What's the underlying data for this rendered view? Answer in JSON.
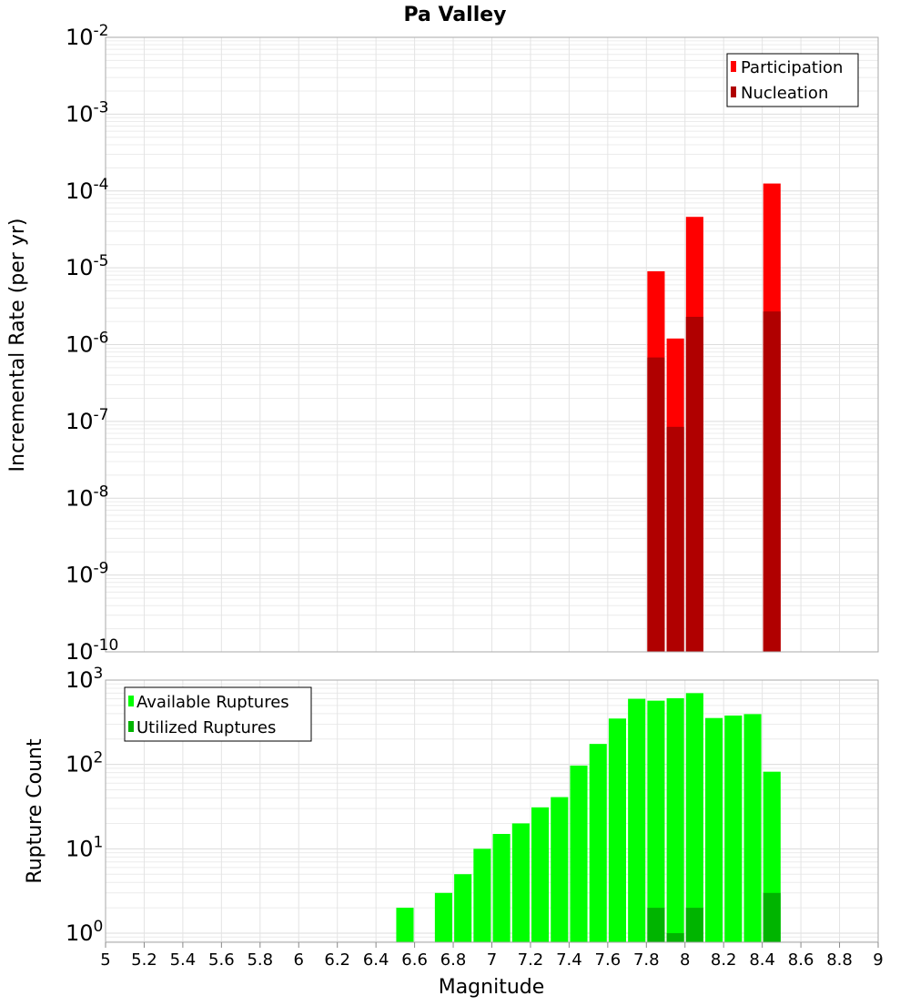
{
  "chart_data": [
    {
      "type": "bar",
      "panel": "top",
      "title": "Pa Valley",
      "xlabel": "",
      "ylabel": "Incremental Rate (per yr)",
      "yscale": "log",
      "ylim": [
        1e-10,
        0.01
      ],
      "xlim": [
        5,
        9
      ],
      "yticks": [
        {
          "base": "10",
          "exp": "-10"
        },
        {
          "base": "10",
          "exp": "-9"
        },
        {
          "base": "10",
          "exp": "-8"
        },
        {
          "base": "10",
          "exp": "-7"
        },
        {
          "base": "10",
          "exp": "-6"
        },
        {
          "base": "10",
          "exp": "-5"
        },
        {
          "base": "10",
          "exp": "-4"
        },
        {
          "base": "10",
          "exp": "-3"
        },
        {
          "base": "10",
          "exp": "-2"
        }
      ],
      "grid": true,
      "legend_position": "top-right",
      "bar_width": 0.09,
      "series": [
        {
          "name": "Participation",
          "color": "#ff0000",
          "x": [
            7.85,
            7.95,
            8.05,
            8.45
          ],
          "values": [
            9e-06,
            1.2e-06,
            4.6e-05,
            0.000125
          ]
        },
        {
          "name": "Nucleation",
          "color": "#b00000",
          "x": [
            7.85,
            7.95,
            8.05,
            8.45
          ],
          "values": [
            6.8e-07,
            8.5e-08,
            2.3e-06,
            2.7e-06
          ]
        }
      ]
    },
    {
      "type": "bar",
      "panel": "bottom",
      "title": "",
      "xlabel": "Magnitude",
      "ylabel": "Rupture Count",
      "yscale": "log",
      "ylim": [
        0.78,
        1000
      ],
      "xlim": [
        5,
        9
      ],
      "xticks": [
        "5",
        "5.2",
        "5.4",
        "5.6",
        "5.8",
        "6",
        "6.2",
        "6.4",
        "6.6",
        "6.8",
        "7",
        "7.2",
        "7.4",
        "7.6",
        "7.8",
        "8",
        "8.2",
        "8.4",
        "8.6",
        "8.8",
        "9"
      ],
      "yticks": [
        {
          "base": "10",
          "exp": "0",
          "value": 1
        },
        {
          "base": "10",
          "exp": "1",
          "value": 10
        },
        {
          "base": "10",
          "exp": "2",
          "value": 100
        },
        {
          "base": "10",
          "exp": "3",
          "value": 1000
        }
      ],
      "grid": true,
      "legend_position": "top-left",
      "bar_width": 0.09,
      "series": [
        {
          "name": "Available Ruptures",
          "color": "#00ff00",
          "x": [
            6.55,
            6.75,
            6.85,
            6.95,
            7.05,
            7.15,
            7.25,
            7.35,
            7.45,
            7.55,
            7.65,
            7.75,
            7.85,
            7.95,
            8.05,
            8.15,
            8.25,
            8.35,
            8.45
          ],
          "values": [
            2,
            3,
            5,
            10,
            15,
            20,
            31,
            41,
            97,
            175,
            350,
            600,
            570,
            610,
            700,
            355,
            380,
            395,
            82
          ]
        },
        {
          "name": "Utilized Ruptures",
          "color": "#00b400",
          "x": [
            7.85,
            7.95,
            8.05,
            8.45
          ],
          "values": [
            2,
            1,
            2,
            3
          ]
        }
      ]
    }
  ]
}
